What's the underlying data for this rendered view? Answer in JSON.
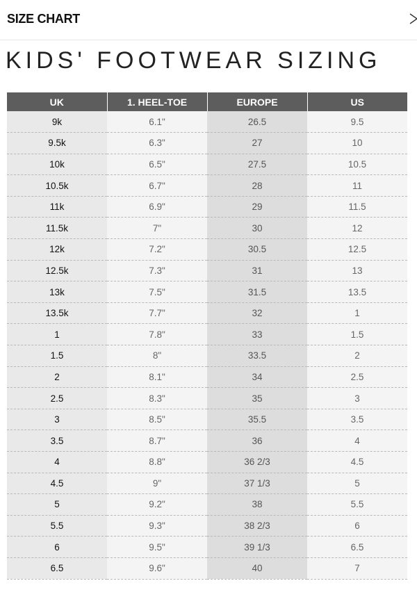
{
  "header": {
    "title": "SIZE CHART",
    "close_icon": "close-icon"
  },
  "page_title": "KIDS' FOOTWEAR SIZING",
  "table": {
    "columns": [
      "UK",
      "1. HEEL-TOE",
      "EUROPE",
      "US"
    ],
    "rows": [
      [
        "9k",
        "6.1\"",
        "26.5",
        "9.5"
      ],
      [
        "9.5k",
        "6.3\"",
        "27",
        "10"
      ],
      [
        "10k",
        "6.5\"",
        "27.5",
        "10.5"
      ],
      [
        "10.5k",
        "6.7\"",
        "28",
        "11"
      ],
      [
        "11k",
        "6.9\"",
        "29",
        "11.5"
      ],
      [
        "11.5k",
        "7\"",
        "30",
        "12"
      ],
      [
        "12k",
        "7.2\"",
        "30.5",
        "12.5"
      ],
      [
        "12.5k",
        "7.3\"",
        "31",
        "13"
      ],
      [
        "13k",
        "7.5\"",
        "31.5",
        "13.5"
      ],
      [
        "13.5k",
        "7.7\"",
        "32",
        "1"
      ],
      [
        "1",
        "7.8\"",
        "33",
        "1.5"
      ],
      [
        "1.5",
        "8\"",
        "33.5",
        "2"
      ],
      [
        "2",
        "8.1\"",
        "34",
        "2.5"
      ],
      [
        "2.5",
        "8.3\"",
        "35",
        "3"
      ],
      [
        "3",
        "8.5\"",
        "35.5",
        "3.5"
      ],
      [
        "3.5",
        "8.7\"",
        "36",
        "4"
      ],
      [
        "4",
        "8.8\"",
        "36 2/3",
        "4.5"
      ],
      [
        "4.5",
        "9\"",
        "37 1/3",
        "5"
      ],
      [
        "5",
        "9.2\"",
        "38",
        "5.5"
      ],
      [
        "5.5",
        "9.3\"",
        "38 2/3",
        "6"
      ],
      [
        "6",
        "9.5\"",
        "39 1/3",
        "6.5"
      ],
      [
        "6.5",
        "9.6\"",
        "40",
        "7"
      ]
    ]
  },
  "colors": {
    "header_bg": "#5d5d5d",
    "uk_col_bg": "#e9e9e9",
    "eu_col_bg": "#dddddd",
    "light_col_bg": "#f4f4f4"
  }
}
